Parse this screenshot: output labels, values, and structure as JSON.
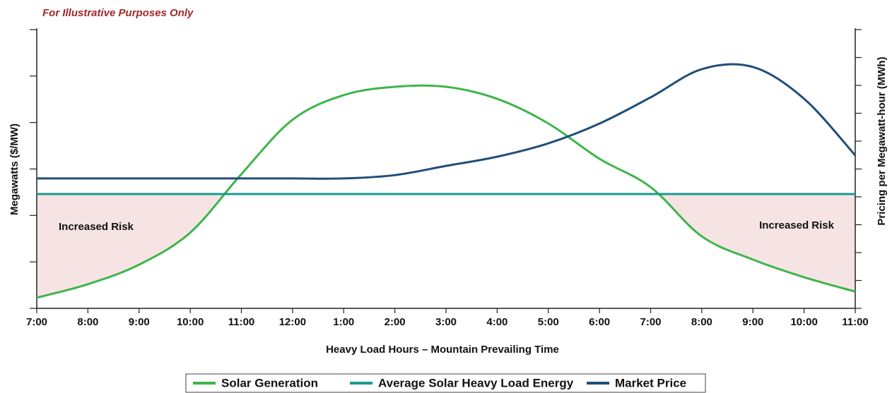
{
  "chart_data": {
    "type": "line",
    "title": "For Illustrative Purposes Only",
    "x_label": "Heavy Load Hours – Mountain Prevailing Time",
    "y_label": "Megawatts ($/MW)",
    "y2_label": "Pricing per Megawatt-hour (MWh)",
    "categories": [
      "7:00",
      "8:00",
      "9:00",
      "10:00",
      "11:00",
      "12:00",
      "1:00",
      "2:00",
      "3:00",
      "4:00",
      "5:00",
      "6:00",
      "7:00",
      "8:00",
      "9:00",
      "10:00",
      "11:00"
    ],
    "ylim": [
      0,
      6
    ],
    "yticks": [
      0,
      1,
      2,
      3,
      4,
      5,
      6
    ],
    "y2lim": [
      0,
      10
    ],
    "y2ticks": [
      0,
      1,
      2,
      3,
      4,
      5,
      6,
      7,
      8,
      9,
      10
    ],
    "series": [
      {
        "name": "Solar Generation",
        "color": "#3cb54a",
        "values": [
          0.23,
          0.52,
          0.94,
          1.63,
          2.89,
          4.06,
          4.59,
          4.77,
          4.77,
          4.51,
          3.98,
          3.22,
          2.61,
          1.55,
          1.05,
          0.67,
          0.36
        ]
      },
      {
        "name": "Average Solar Heavy Load Energy",
        "color": "#1a9a8f",
        "values": [
          2.46,
          2.46,
          2.46,
          2.46,
          2.46,
          2.46,
          2.46,
          2.46,
          2.46,
          2.46,
          2.46,
          2.46,
          2.46,
          2.46,
          2.46,
          2.46,
          2.46
        ]
      },
      {
        "name": "Market Price",
        "color": "#1f4e79",
        "axis": "y2",
        "values": [
          4.66,
          4.66,
          4.66,
          4.66,
          4.66,
          4.66,
          4.66,
          4.78,
          5.11,
          5.44,
          5.92,
          6.63,
          7.57,
          8.58,
          8.66,
          7.52,
          5.49
        ]
      }
    ],
    "annotations": [
      "Increased Risk",
      "Increased Risk"
    ],
    "risk_color": "#f6e4e4",
    "legend": "bottom"
  }
}
